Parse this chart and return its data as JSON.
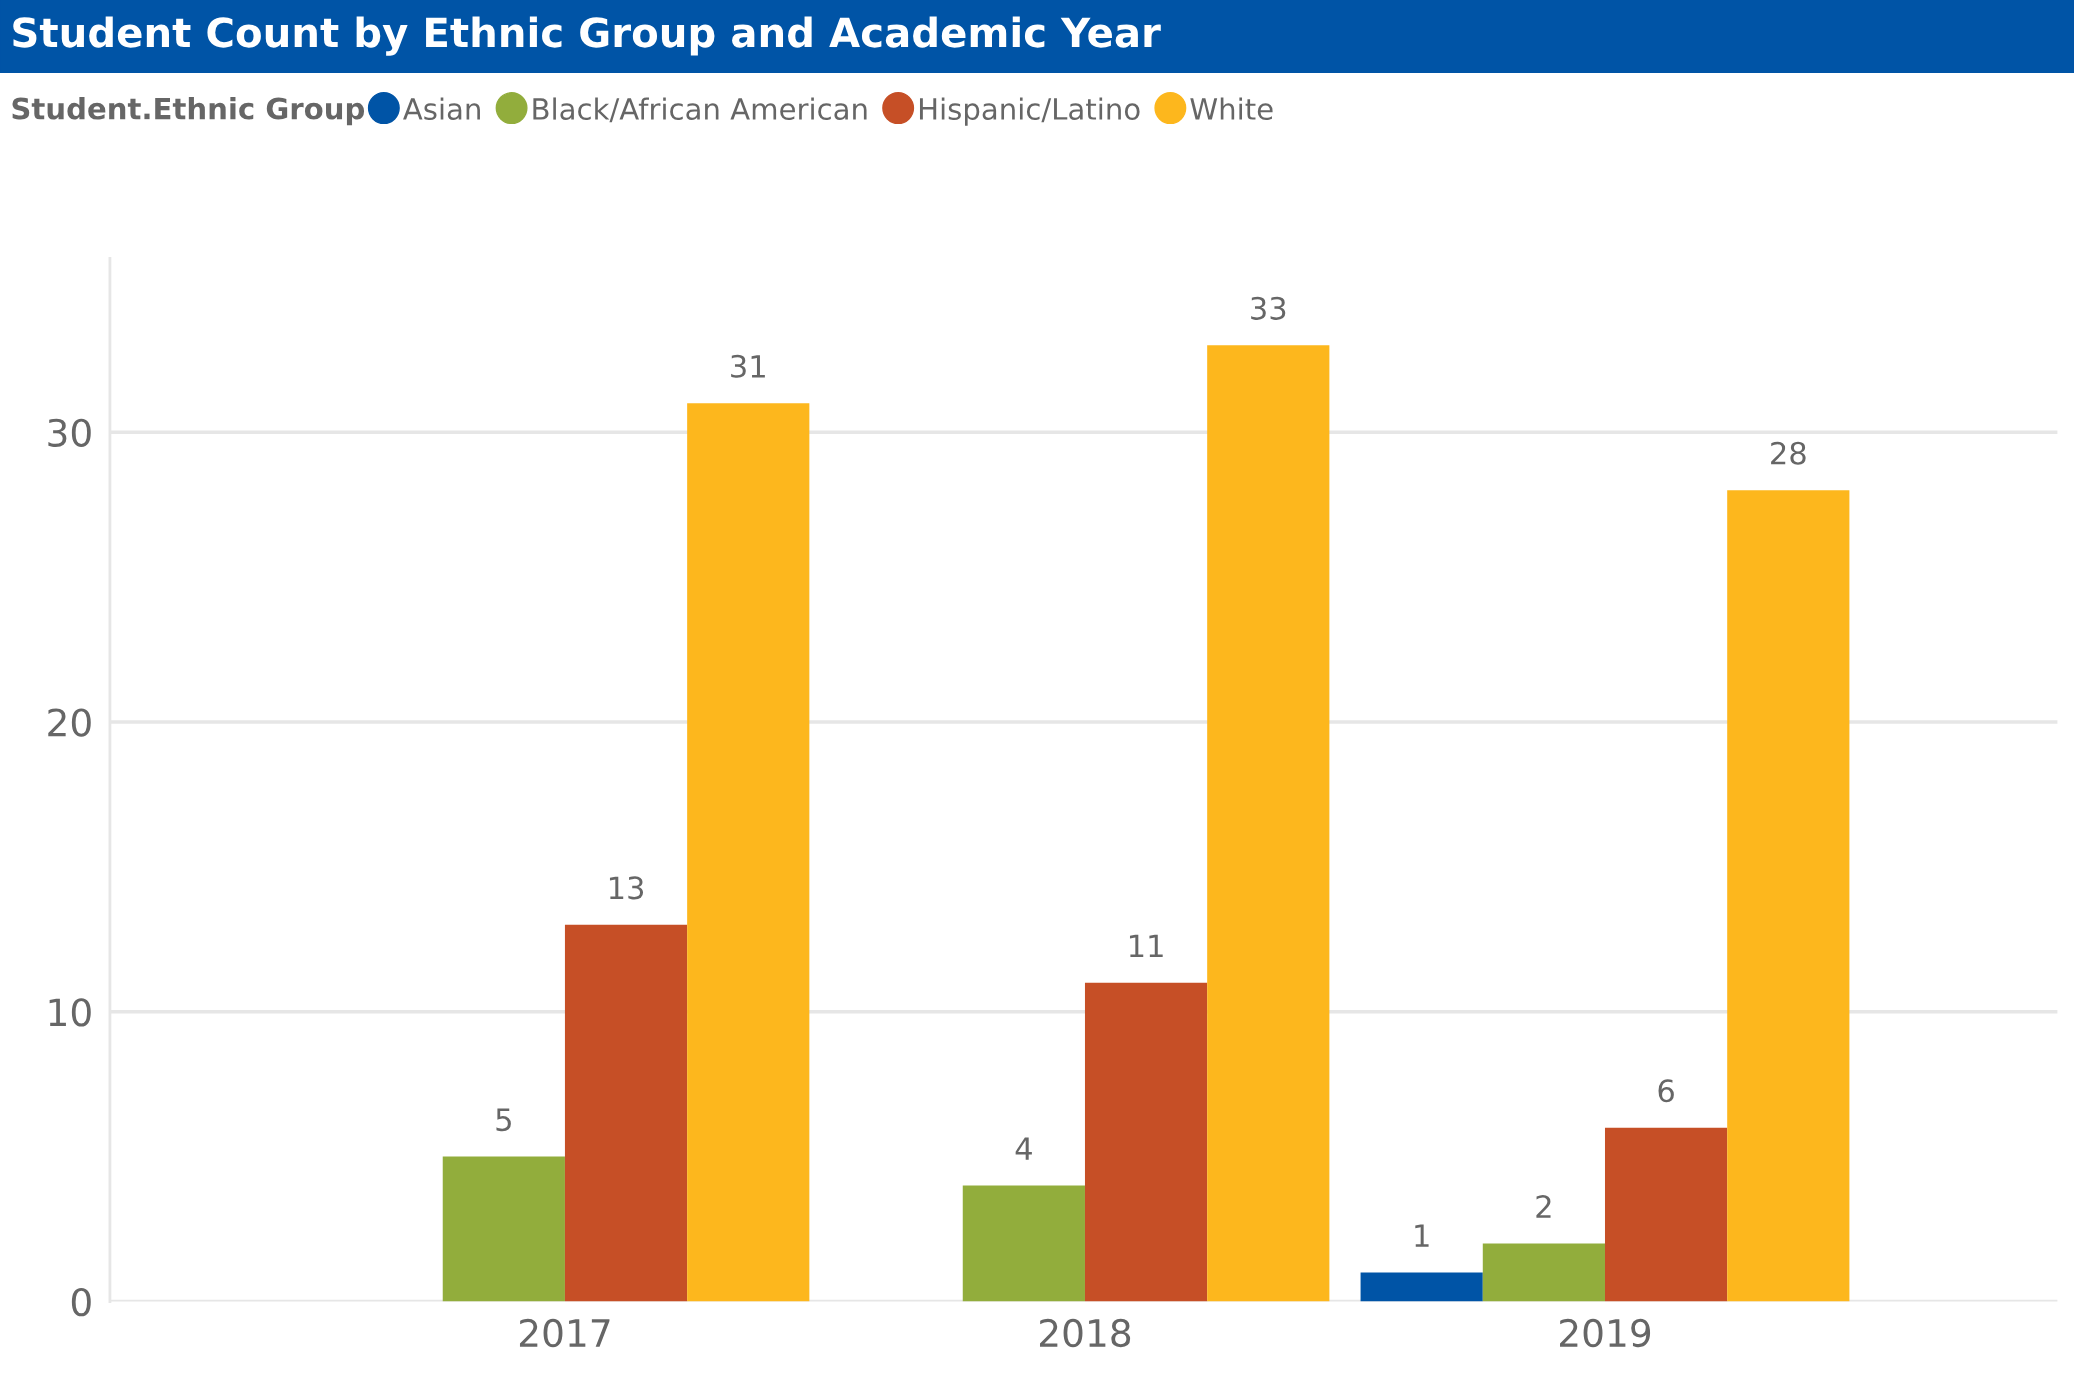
{
  "chart_data": {
    "type": "bar",
    "title": "Student Count by Ethnic Group and Academic Year",
    "legend_title": "Student.Ethnic Group",
    "categories": [
      "2017",
      "2018",
      "2019"
    ],
    "series": [
      {
        "name": "Asian",
        "color": "#0054a6",
        "values": [
          null,
          null,
          1
        ]
      },
      {
        "name": "Black/African American",
        "color": "#92ad3c",
        "values": [
          5,
          4,
          2
        ]
      },
      {
        "name": "Hispanic/Latino",
        "color": "#c64f26",
        "values": [
          13,
          11,
          6
        ]
      },
      {
        "name": "White",
        "color": "#fdb71d",
        "values": [
          31,
          33,
          28
        ]
      }
    ],
    "ylim": [
      0,
      36
    ],
    "yticks": [
      0,
      10,
      20,
      30
    ],
    "grid": "y",
    "legend": "top left",
    "data_labels": true
  }
}
